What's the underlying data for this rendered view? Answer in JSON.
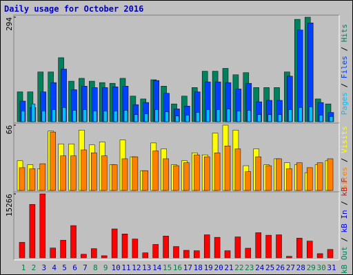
{
  "title": "Daily usage for October 2016",
  "categories": [
    "1",
    "2",
    "3",
    "4",
    "5",
    "6",
    "7",
    "8",
    "9",
    "10",
    "11",
    "12",
    "13",
    "14",
    "15",
    "16",
    "17",
    "18",
    "19",
    "20",
    "21",
    "22",
    "23",
    "24",
    "25",
    "26",
    "27",
    "28",
    "29",
    "30",
    "31"
  ],
  "category_colors": [
    "#008040",
    "#008040",
    "#0000c0",
    "#0000c0",
    "#0000c0",
    "#0000c0",
    "#0000c0",
    "#008040",
    "#008040",
    "#0000c0",
    "#0000c0",
    "#0000c0",
    "#0000c0",
    "#0000c0",
    "#008040",
    "#008040",
    "#0000c0",
    "#0000c0",
    "#0000c0",
    "#0000c0",
    "#0000c0",
    "#008040",
    "#008040",
    "#0000c0",
    "#0000c0",
    "#0000c0",
    "#0000c0",
    "#0000c0",
    "#008040",
    "#008040",
    "#0000c0"
  ],
  "legend_separator": " / ",
  "chart_data": [
    {
      "type": "bar",
      "ylim": [
        0,
        294
      ],
      "yticks": [
        294
      ],
      "series": [
        {
          "name": "Hits",
          "color": "#00805c",
          "values": [
            84,
            84,
            140,
            140,
            180,
            114,
            122,
            114,
            110,
            108,
            122,
            72,
            64,
            118,
            100,
            50,
            72,
            96,
            142,
            142,
            150,
            132,
            138,
            96,
            96,
            96,
            140,
            288,
            294,
            64,
            50
          ]
        },
        {
          "name": "Files",
          "color": "#0040ff",
          "values": [
            58,
            40,
            84,
            110,
            148,
            90,
            100,
            96,
            96,
            98,
            100,
            48,
            54,
            116,
            80,
            36,
            44,
            84,
            112,
            112,
            110,
            92,
            108,
            56,
            60,
            60,
            128,
            258,
            278,
            54,
            26
          ]
        },
        {
          "name": "Pages",
          "color": "#00c0ff",
          "values": [
            30,
            50,
            30,
            34,
            40,
            32,
            34,
            30,
            30,
            30,
            32,
            20,
            22,
            34,
            28,
            16,
            18,
            26,
            34,
            34,
            36,
            30,
            32,
            20,
            20,
            20,
            34,
            40,
            42,
            18,
            14
          ]
        }
      ]
    },
    {
      "type": "bar",
      "ylim": [
        0,
        66
      ],
      "yticks": [
        66
      ],
      "series": [
        {
          "name": "Visits",
          "color": "#ffff00",
          "values": [
            30,
            26,
            22,
            60,
            47,
            47,
            61,
            46,
            49,
            26,
            51,
            34,
            20,
            48,
            42,
            26,
            30,
            38,
            36,
            58,
            66,
            61,
            25,
            42,
            26,
            32,
            28,
            26,
            18,
            26,
            30
          ]
        },
        {
          "name": "Sites",
          "color": "#ff8000",
          "values": [
            23,
            22,
            27,
            59,
            35,
            35,
            41,
            38,
            35,
            26,
            32,
            34,
            20,
            40,
            32,
            25,
            28,
            36,
            34,
            38,
            45,
            42,
            19,
            34,
            25,
            32,
            22,
            28,
            23,
            28,
            32
          ]
        }
      ]
    },
    {
      "type": "bar",
      "ylim": [
        0,
        15266
      ],
      "yticks": [
        15266
      ],
      "series": [
        {
          "name": "kB F",
          "color": "#ff0000",
          "values": [
            3700,
            12750,
            15266,
            2350,
            4200,
            7700,
            850,
            2200,
            500,
            6900,
            5700,
            4500,
            1200,
            3200,
            5200,
            2700,
            1800,
            1700,
            5500,
            4900,
            1700,
            5000,
            2300,
            6000,
            5400,
            5500,
            350,
            4700,
            4000,
            1000,
            2000
          ]
        },
        {
          "name": "kB In",
          "color": "#0000ff"
        },
        {
          "name": "kB Out",
          "color": "#00805c"
        }
      ]
    }
  ]
}
